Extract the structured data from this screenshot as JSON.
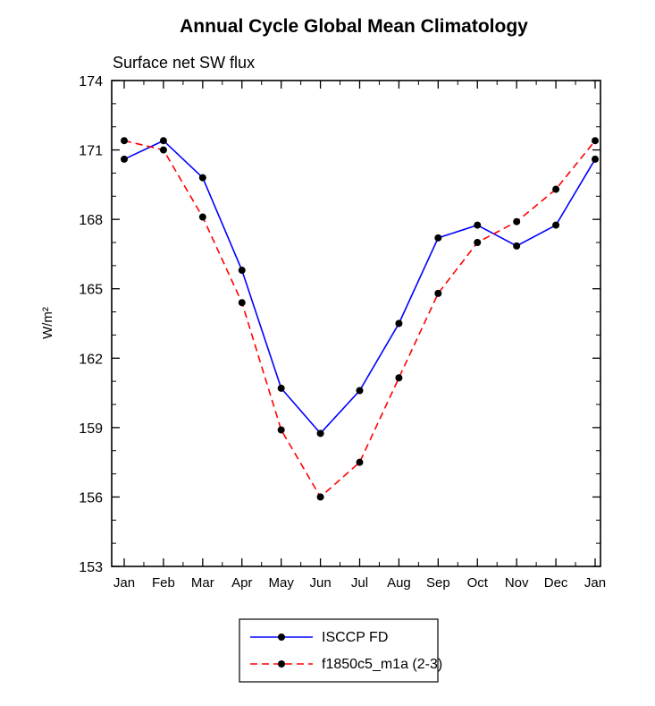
{
  "page": {
    "background_color": "#ffffff",
    "frame_color": "#000000"
  },
  "chart_data": {
    "type": "line",
    "title": "Annual Cycle Global Mean Climatology",
    "subtitle": "Surface net SW flux",
    "xlabel": "",
    "ylabel": "W/m²",
    "ylim": [
      153,
      174
    ],
    "y_ticks": [
      153,
      156,
      159,
      162,
      165,
      168,
      171,
      174
    ],
    "y_minor_step": 1,
    "grid": false,
    "legend_position": "bottom-center",
    "x_tick_labels": [
      "Jan",
      "Feb",
      "Mar",
      "Apr",
      "May",
      "Jun",
      "Jul",
      "Aug",
      "Sep",
      "Oct",
      "Nov",
      "Dec",
      "Jan"
    ],
    "series": [
      {
        "name": "ISCCP FD",
        "color": "#0000ff",
        "style": "solid",
        "marker": "circle",
        "marker_color": "#000000",
        "values": [
          170.6,
          171.4,
          169.8,
          165.8,
          160.7,
          158.75,
          160.6,
          163.5,
          167.2,
          167.75,
          166.85,
          167.75,
          170.6
        ]
      },
      {
        "name": "f1850c5_m1a (2-3)",
        "color": "#ff0000",
        "style": "dashed",
        "marker": "circle",
        "marker_color": "#000000",
        "values": [
          171.4,
          171.0,
          168.1,
          164.4,
          158.9,
          156.0,
          157.5,
          161.15,
          164.8,
          167.0,
          167.9,
          169.3,
          171.4
        ]
      }
    ]
  }
}
